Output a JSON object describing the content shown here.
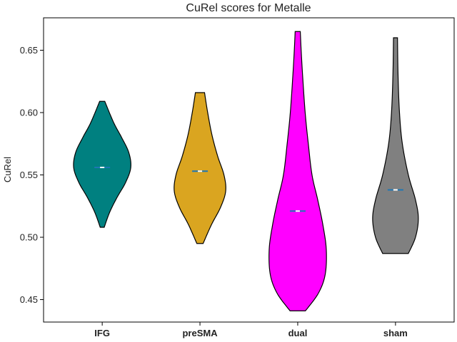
{
  "chart_data": {
    "type": "violin",
    "title": "CuRel scores for Metalle",
    "xlabel": "",
    "ylabel": "CuRel",
    "ylim": [
      0.432,
      0.676
    ],
    "yticks": [
      0.45,
      0.5,
      0.55,
      0.6,
      0.65
    ],
    "ytick_labels": [
      "0.45",
      "0.50",
      "0.55",
      "0.60",
      "0.65"
    ],
    "grid": false,
    "categories": [
      "IFG",
      "preSMA",
      "dual",
      "sham"
    ],
    "series": [
      {
        "category": "IFG",
        "color": "#008080",
        "min": 0.508,
        "max": 0.609,
        "median": 0.556,
        "mean": 0.556,
        "profile": [
          [
            0.508,
            0.07
          ],
          [
            0.52,
            0.26
          ],
          [
            0.532,
            0.52
          ],
          [
            0.544,
            0.82
          ],
          [
            0.556,
            1.0
          ],
          [
            0.568,
            0.93
          ],
          [
            0.58,
            0.68
          ],
          [
            0.592,
            0.4
          ],
          [
            0.609,
            0.09
          ]
        ]
      },
      {
        "category": "preSMA",
        "color": "#DAA520",
        "min": 0.495,
        "max": 0.616,
        "median": 0.553,
        "mean": 0.553,
        "profile": [
          [
            0.495,
            0.11
          ],
          [
            0.51,
            0.4
          ],
          [
            0.524,
            0.72
          ],
          [
            0.537,
            0.9
          ],
          [
            0.55,
            0.84
          ],
          [
            0.565,
            0.62
          ],
          [
            0.582,
            0.42
          ],
          [
            0.6,
            0.27
          ],
          [
            0.616,
            0.16
          ]
        ]
      },
      {
        "category": "dual",
        "color": "#FF00FF",
        "min": 0.441,
        "max": 0.665,
        "median": 0.521,
        "mean": 0.521,
        "profile": [
          [
            0.441,
            0.27
          ],
          [
            0.455,
            0.72
          ],
          [
            0.47,
            0.96
          ],
          [
            0.49,
            1.0
          ],
          [
            0.51,
            0.88
          ],
          [
            0.53,
            0.7
          ],
          [
            0.55,
            0.5
          ],
          [
            0.575,
            0.37
          ],
          [
            0.6,
            0.26
          ],
          [
            0.63,
            0.17
          ],
          [
            0.65,
            0.12
          ],
          [
            0.665,
            0.09
          ]
        ]
      },
      {
        "category": "sham",
        "color": "#808080",
        "min": 0.487,
        "max": 0.66,
        "median": 0.538,
        "mean": 0.538,
        "profile": [
          [
            0.487,
            0.45
          ],
          [
            0.5,
            0.7
          ],
          [
            0.515,
            0.8
          ],
          [
            0.53,
            0.7
          ],
          [
            0.55,
            0.45
          ],
          [
            0.575,
            0.24
          ],
          [
            0.6,
            0.14
          ],
          [
            0.63,
            0.09
          ],
          [
            0.66,
            0.07
          ]
        ]
      }
    ]
  }
}
